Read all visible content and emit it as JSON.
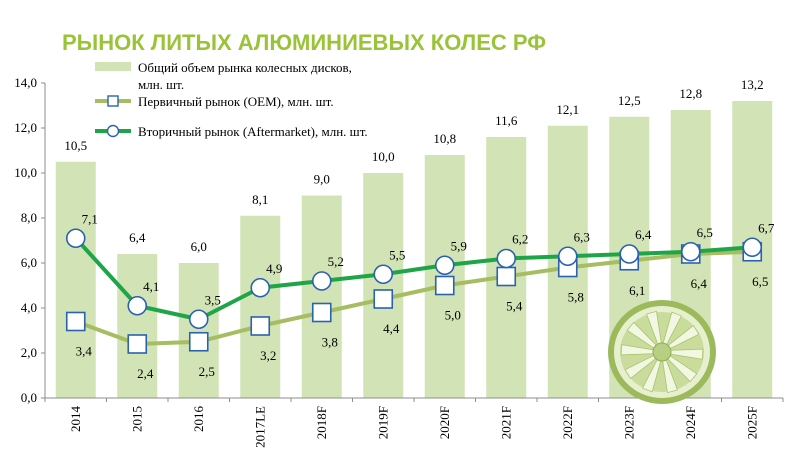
{
  "chart_data": {
    "type": "bar",
    "title": "РЫНОК ЛИТЫХ АЛЮМИНИЕВЫХ КОЛЕС РФ",
    "categories": [
      "2014",
      "2015",
      "2016",
      "2017LE",
      "2018F",
      "2019F",
      "2020F",
      "2021F",
      "2022F",
      "2023F",
      "2024F",
      "2025F"
    ],
    "ylim": [
      0,
      14
    ],
    "yticks": [
      "0,0",
      "2,0",
      "4,0",
      "6,0",
      "8,0",
      "10,0",
      "12,0",
      "14,0"
    ],
    "grid": false,
    "legend_position": "top-left",
    "series": [
      {
        "name_line1": "Общий объем рынка колесных дисков,",
        "name_line2": "млн. шт.",
        "kind": "bar",
        "color": "#d2e3b5",
        "values": [
          10.5,
          6.4,
          6.0,
          8.1,
          9.0,
          10.0,
          10.8,
          11.6,
          12.1,
          12.5,
          12.8,
          13.2
        ],
        "labels": [
          "10,5",
          "6,4",
          "6,0",
          "8,1",
          "9,0",
          "10,0",
          "10,8",
          "11,6",
          "12,1",
          "12,5",
          "12,8",
          "13,2"
        ]
      },
      {
        "name": "Первичный рынок (OEM), млн. шт.",
        "kind": "line",
        "marker": "square",
        "color": "#a6bd61",
        "marker_stroke": "#2a62b0",
        "values": [
          3.4,
          2.4,
          2.5,
          3.2,
          3.8,
          4.4,
          5.0,
          5.4,
          5.8,
          6.1,
          6.4,
          6.5
        ],
        "labels": [
          "3,4",
          "2,4",
          "2,5",
          "3,2",
          "3,8",
          "4,4",
          "5,0",
          "5,4",
          "5,8",
          "6,1",
          "6,4",
          "6,5"
        ]
      },
      {
        "name": "Вторичный рынок (Aftermarket), млн. шт.",
        "kind": "line",
        "marker": "circle",
        "color": "#1da548",
        "marker_stroke": "#2a62b0",
        "values": [
          7.1,
          4.1,
          3.5,
          4.9,
          5.2,
          5.5,
          5.9,
          6.2,
          6.3,
          6.4,
          6.5,
          6.7
        ],
        "labels": [
          "7,1",
          "4,1",
          "3,5",
          "4,9",
          "5,2",
          "5,5",
          "5,9",
          "6,2",
          "6,3",
          "6,4",
          "6,5",
          "6,7"
        ]
      }
    ]
  }
}
